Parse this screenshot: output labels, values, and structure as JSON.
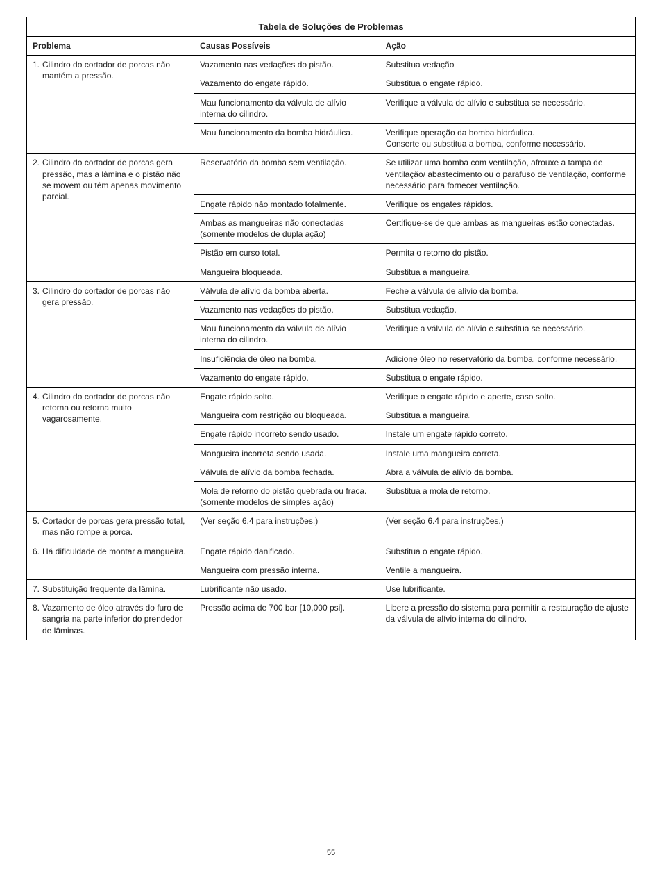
{
  "pageNumber": "55",
  "table": {
    "title": "Tabela de Soluções de Problemas",
    "headers": {
      "problem": "Problema",
      "cause": "Causas Possíveis",
      "action": "Ação"
    },
    "problems": [
      {
        "num": "1.",
        "text": "Cilindro do cortador de porcas não mantém a pressão.",
        "rows": [
          {
            "cause": "Vazamento nas vedações do pistão.",
            "action": "Substitua vedação"
          },
          {
            "cause": "Vazamento do engate rápido.",
            "action": "Substitua o engate rápido."
          },
          {
            "cause": "Mau funcionamento da válvula de alívio interna do cilindro.",
            "action": "Verifique a válvula de alívio e substitua se necessário."
          },
          {
            "cause": "Mau funcionamento da bomba hidráulica.",
            "action": "Verifique operação da bomba hidráulica.\nConserte ou substitua a bomba, conforme necessário."
          }
        ]
      },
      {
        "num": "2.",
        "text": "Cilindro do cortador de porcas gera pressão, mas a lâmina e o pistão não se movem ou têm apenas movimento parcial.",
        "rows": [
          {
            "cause": "Reservatório da bomba sem ventilação.",
            "action": "Se utilizar uma bomba com ventilação, afrouxe a tampa de ventilação/ abastecimento ou o parafuso de ventilação, conforme necessário para fornecer ventilação."
          },
          {
            "cause": "Engate rápido não montado totalmente.",
            "action": "Verifique os engates rápidos."
          },
          {
            "cause": "Ambas as mangueiras não conectadas (somente modelos de dupla ação)",
            "action": "Certifique-se de que ambas as mangueiras estão conectadas."
          },
          {
            "cause": "Pistão em curso total.",
            "action": "Permita o retorno do pistão."
          },
          {
            "cause": "Mangueira bloqueada.",
            "action": "Substitua a mangueira."
          }
        ]
      },
      {
        "num": "3.",
        "text": "Cilindro do cortador de porcas não gera pressão.",
        "rows": [
          {
            "cause": "Válvula de alívio da bomba aberta.",
            "action": "Feche a válvula de alívio da bomba."
          },
          {
            "cause": "Vazamento nas vedações do pistão.",
            "action": "Substitua vedação."
          },
          {
            "cause": "Mau funcionamento da válvula de alívio interna do cilindro.",
            "action": "Verifique a válvula de alívio e substitua se necessário."
          },
          {
            "cause": "Insuficiência de óleo na bomba.",
            "action": "Adicione óleo no reservatório da bomba, conforme necessário."
          },
          {
            "cause": "Vazamento do engate rápido.",
            "action": "Substitua o engate rápido."
          }
        ]
      },
      {
        "num": "4.",
        "text": "Cilindro do cortador de porcas não retorna ou retorna muito vagarosamente.",
        "rows": [
          {
            "cause": "Engate rápido solto.",
            "action": "Verifique o engate rápido e aperte, caso solto."
          },
          {
            "cause": "Mangueira com restrição ou bloqueada.",
            "action": "Substitua a mangueira."
          },
          {
            "cause": "Engate rápido incorreto sendo usado.",
            "action": "Instale um engate rápido correto."
          },
          {
            "cause": "Mangueira incorreta sendo usada.",
            "action": "Instale uma mangueira correta."
          },
          {
            "cause": "Válvula de alívio da bomba fechada.",
            "action": "Abra a válvula de alívio da bomba."
          },
          {
            "cause": "Mola de retorno do pistão quebrada ou fraca. (somente modelos de simples ação)",
            "action": "Substitua a mola de retorno."
          }
        ]
      },
      {
        "num": "5.",
        "text": "Cortador de porcas gera pressão total, mas não rompe a porca.",
        "rows": [
          {
            "cause": "(Ver seção 6.4 para instruções.)",
            "action": "(Ver seção 6.4 para instruções.)"
          }
        ]
      },
      {
        "num": "6.",
        "text": "Há dificuldade de montar a mangueira.",
        "rows": [
          {
            "cause": "Engate rápido danificado.",
            "action": "Substitua o engate rápido."
          },
          {
            "cause": "Mangueira com pressão interna.",
            "action": "Ventile a mangueira."
          }
        ]
      },
      {
        "num": "7.",
        "text": "Substituição frequente da lâmina.",
        "rows": [
          {
            "cause": "Lubrificante não usado.",
            "action": "Use lubrificante."
          }
        ]
      },
      {
        "num": "8.",
        "text": "Vazamento de óleo através do furo de sangria na parte inferior do prendedor de lâminas.",
        "rows": [
          {
            "cause": "Pressão acima de 700 bar [10,000 psi].",
            "action": "Libere  a pressão do sistema para permitir a restauração de ajuste da válvula de alívio interna do cilindro."
          }
        ]
      }
    ]
  }
}
